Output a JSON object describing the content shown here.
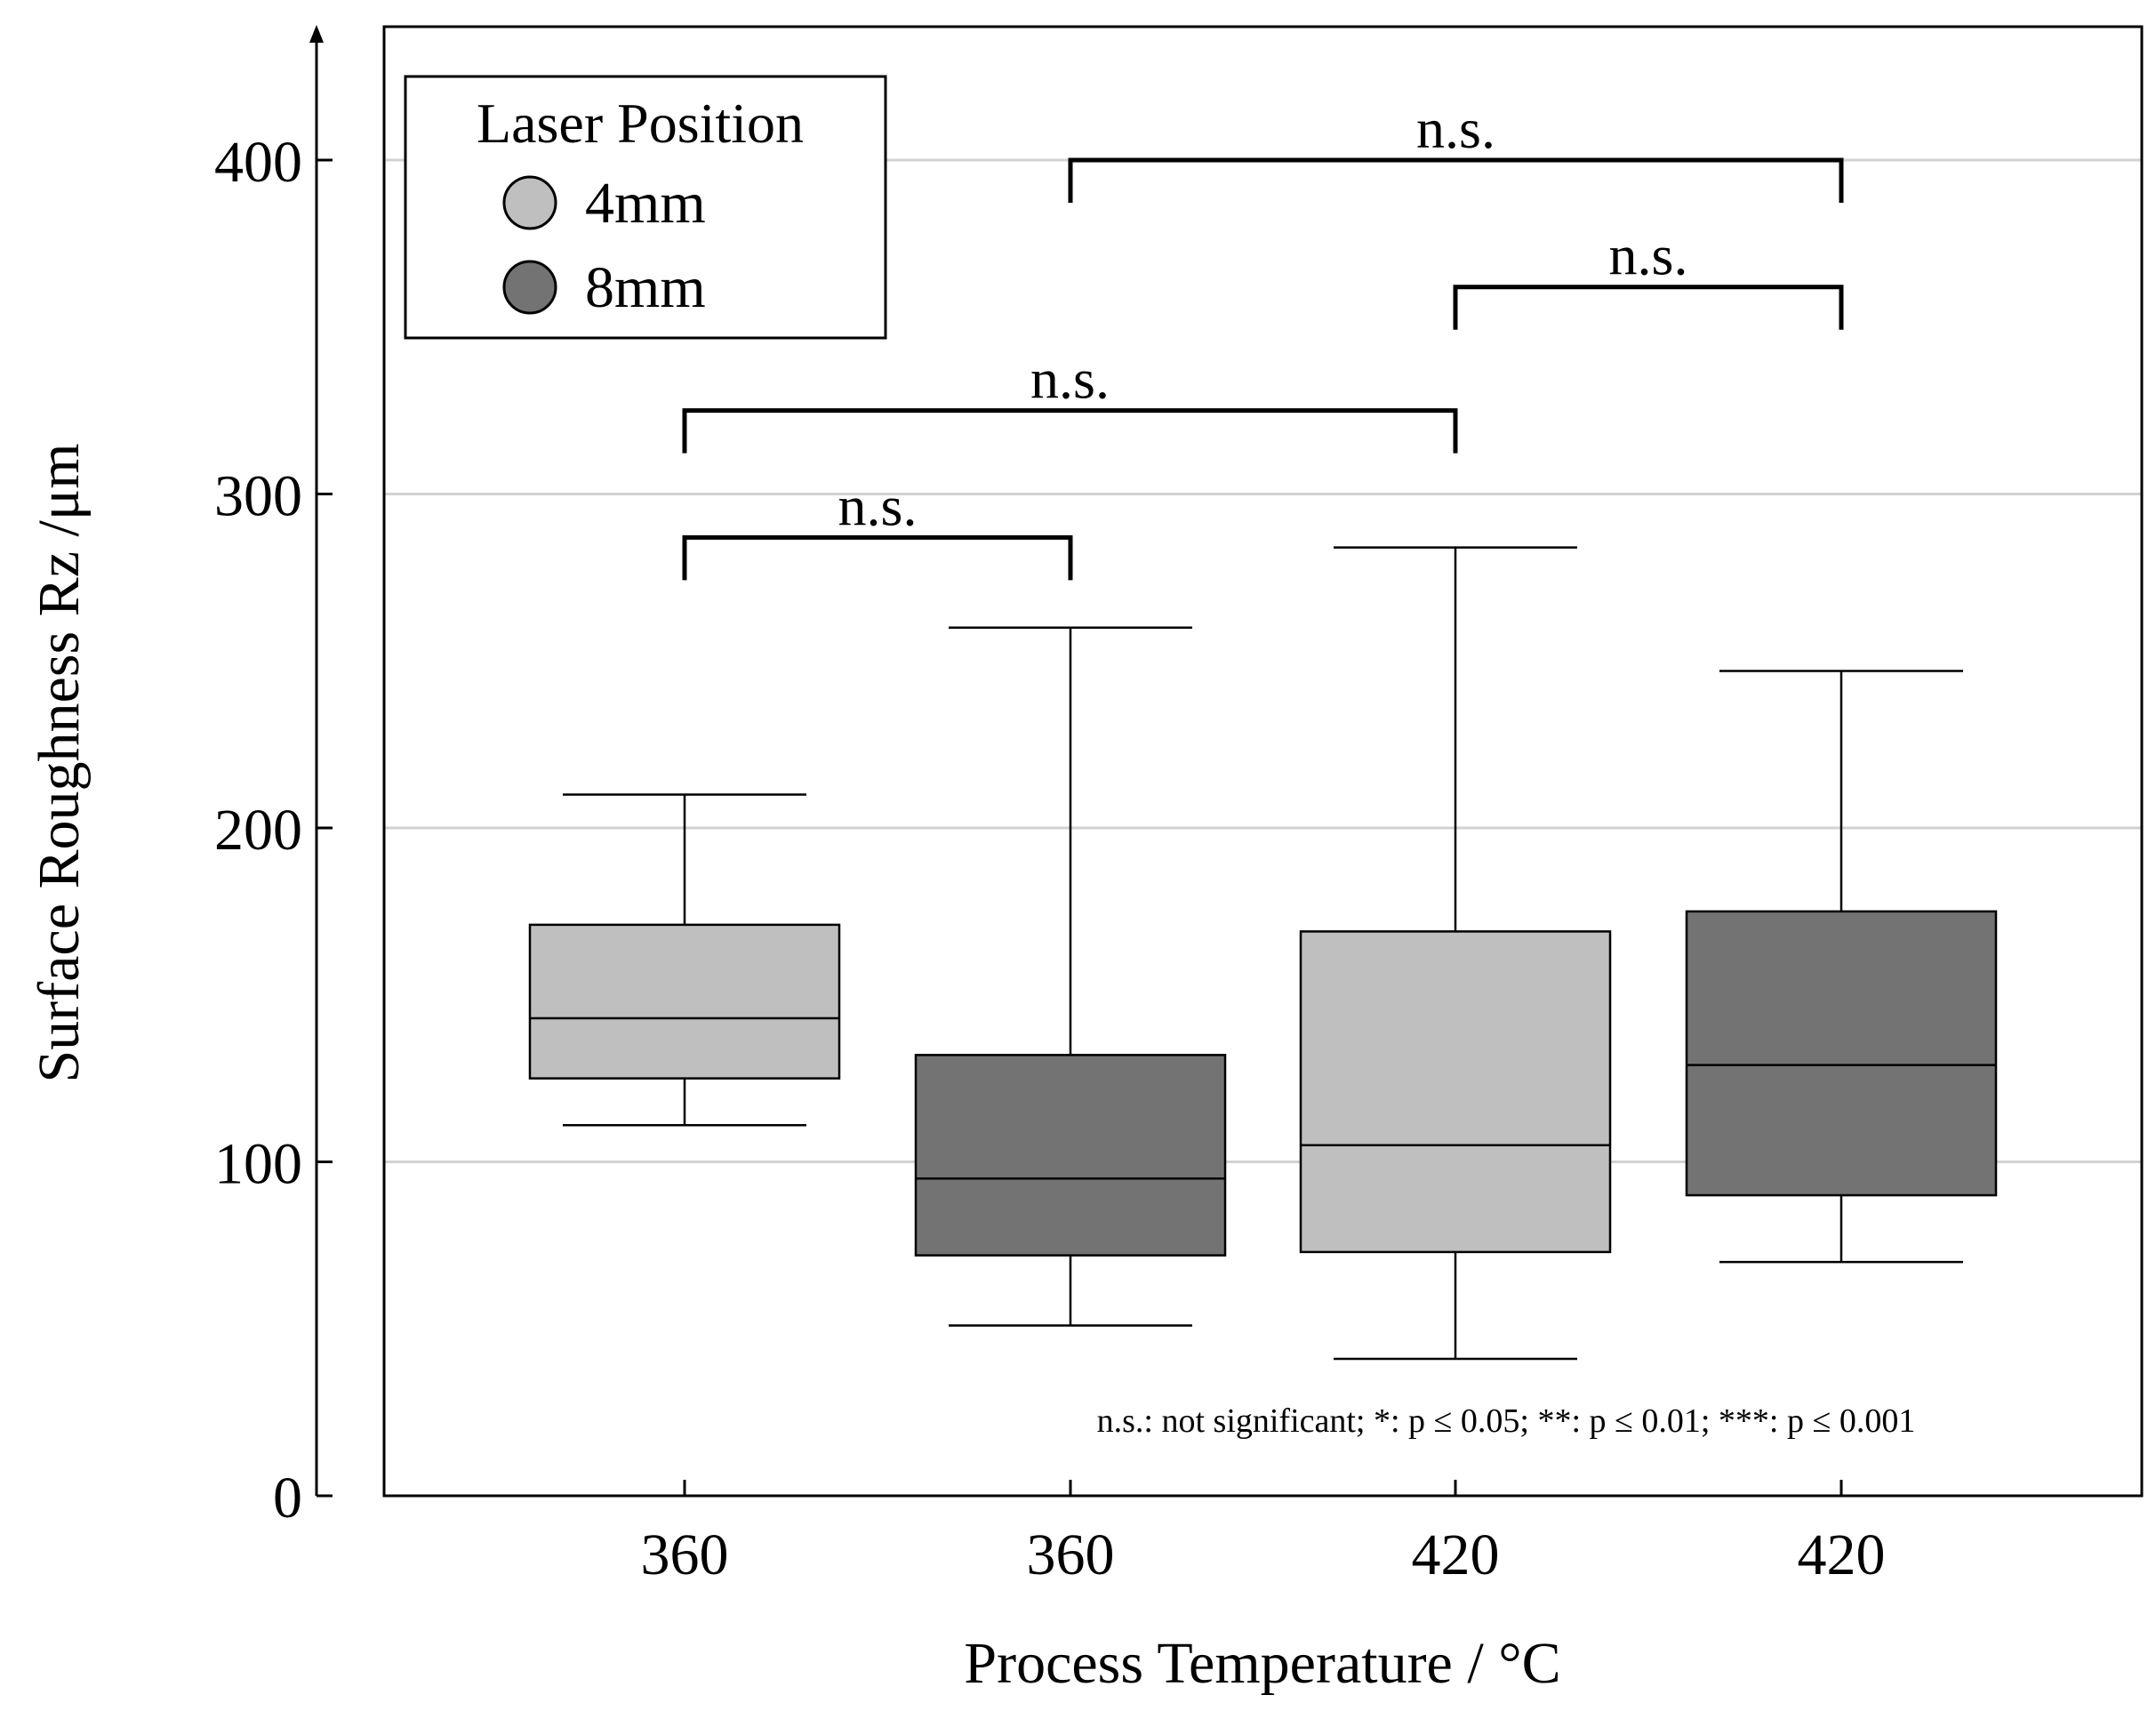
{
  "chart_data": {
    "type": "boxplot",
    "title": "",
    "xlabel": "Process Temperature / °C",
    "ylabel": "Surface Roughness Rz /μm",
    "ylim": [
      0,
      440
    ],
    "yticks": [
      0,
      100,
      200,
      300,
      400
    ],
    "ytick_labels": [
      "0",
      "100",
      "200",
      "300",
      "400"
    ],
    "grid": true,
    "categories": [
      "360",
      "360",
      "420",
      "420"
    ],
    "legend": {
      "title": "Laser Position",
      "placement": "top-left",
      "entries": [
        {
          "label": "4mm",
          "color": "#bfbfbf"
        },
        {
          "label": "8mm",
          "color": "#737373"
        }
      ]
    },
    "series": [
      {
        "name": "4mm",
        "color": "#bfbfbf",
        "category_index": 0,
        "whisker_low": 111,
        "q1": 125,
        "median": 143,
        "q3": 171,
        "whisker_high": 210
      },
      {
        "name": "8mm",
        "color": "#737373",
        "category_index": 1,
        "whisker_low": 51,
        "q1": 72,
        "median": 95,
        "q3": 132,
        "whisker_high": 260
      },
      {
        "name": "4mm",
        "color": "#bfbfbf",
        "category_index": 2,
        "whisker_low": 41,
        "q1": 73,
        "median": 105,
        "q3": 169,
        "whisker_high": 284
      },
      {
        "name": "8mm",
        "color": "#737373",
        "category_index": 3,
        "whisker_low": 70,
        "q1": 90,
        "median": 129,
        "q3": 175,
        "whisker_high": 247
      }
    ],
    "significance": [
      {
        "from": 0,
        "to": 1,
        "y": 287,
        "label": "n.s."
      },
      {
        "from": 0,
        "to": 2,
        "y": 325,
        "label": "n.s."
      },
      {
        "from": 2,
        "to": 3,
        "y": 362,
        "label": "n.s."
      },
      {
        "from": 1,
        "to": 3,
        "y": 400,
        "label": "n.s."
      }
    ],
    "footnote": "n.s.: not significant; *: p ≤ 0.05; **: p ≤ 0.01; ***: p ≤ 0.001"
  }
}
